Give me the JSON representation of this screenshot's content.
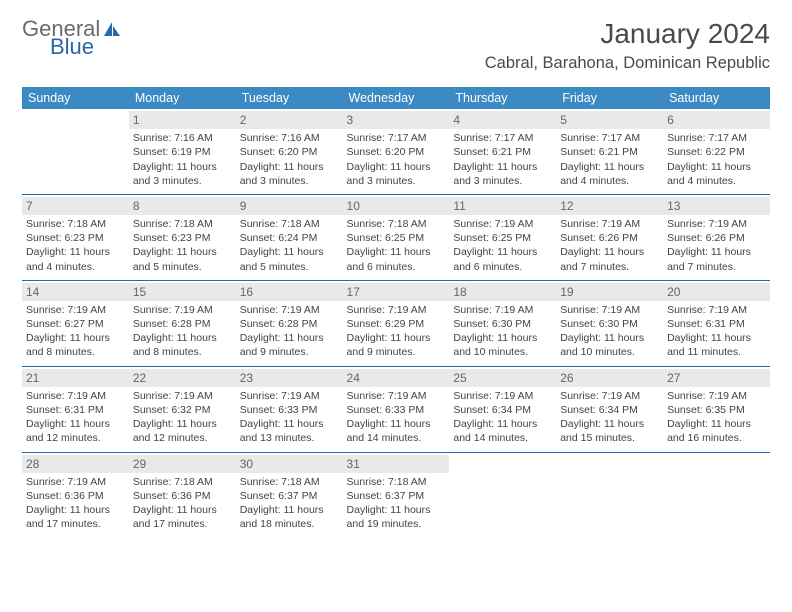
{
  "logo": {
    "text1": "General",
    "text2": "Blue",
    "accent": "#2868a8",
    "gray": "#6b6b6b"
  },
  "title": "January 2024",
  "location": "Cabral, Barahona, Dominican Republic",
  "colors": {
    "header_bg": "#3b8ac4",
    "header_fg": "#ffffff",
    "rule": "#2868a8",
    "daynum_bg": "#e9e9e9"
  },
  "day_headers": [
    "Sunday",
    "Monday",
    "Tuesday",
    "Wednesday",
    "Thursday",
    "Friday",
    "Saturday"
  ],
  "weeks": [
    [
      null,
      {
        "n": "1",
        "sr": "7:16 AM",
        "ss": "6:19 PM",
        "dl": "11 hours and 3 minutes."
      },
      {
        "n": "2",
        "sr": "7:16 AM",
        "ss": "6:20 PM",
        "dl": "11 hours and 3 minutes."
      },
      {
        "n": "3",
        "sr": "7:17 AM",
        "ss": "6:20 PM",
        "dl": "11 hours and 3 minutes."
      },
      {
        "n": "4",
        "sr": "7:17 AM",
        "ss": "6:21 PM",
        "dl": "11 hours and 3 minutes."
      },
      {
        "n": "5",
        "sr": "7:17 AM",
        "ss": "6:21 PM",
        "dl": "11 hours and 4 minutes."
      },
      {
        "n": "6",
        "sr": "7:17 AM",
        "ss": "6:22 PM",
        "dl": "11 hours and 4 minutes."
      }
    ],
    [
      {
        "n": "7",
        "sr": "7:18 AM",
        "ss": "6:23 PM",
        "dl": "11 hours and 4 minutes."
      },
      {
        "n": "8",
        "sr": "7:18 AM",
        "ss": "6:23 PM",
        "dl": "11 hours and 5 minutes."
      },
      {
        "n": "9",
        "sr": "7:18 AM",
        "ss": "6:24 PM",
        "dl": "11 hours and 5 minutes."
      },
      {
        "n": "10",
        "sr": "7:18 AM",
        "ss": "6:25 PM",
        "dl": "11 hours and 6 minutes."
      },
      {
        "n": "11",
        "sr": "7:19 AM",
        "ss": "6:25 PM",
        "dl": "11 hours and 6 minutes."
      },
      {
        "n": "12",
        "sr": "7:19 AM",
        "ss": "6:26 PM",
        "dl": "11 hours and 7 minutes."
      },
      {
        "n": "13",
        "sr": "7:19 AM",
        "ss": "6:26 PM",
        "dl": "11 hours and 7 minutes."
      }
    ],
    [
      {
        "n": "14",
        "sr": "7:19 AM",
        "ss": "6:27 PM",
        "dl": "11 hours and 8 minutes."
      },
      {
        "n": "15",
        "sr": "7:19 AM",
        "ss": "6:28 PM",
        "dl": "11 hours and 8 minutes."
      },
      {
        "n": "16",
        "sr": "7:19 AM",
        "ss": "6:28 PM",
        "dl": "11 hours and 9 minutes."
      },
      {
        "n": "17",
        "sr": "7:19 AM",
        "ss": "6:29 PM",
        "dl": "11 hours and 9 minutes."
      },
      {
        "n": "18",
        "sr": "7:19 AM",
        "ss": "6:30 PM",
        "dl": "11 hours and 10 minutes."
      },
      {
        "n": "19",
        "sr": "7:19 AM",
        "ss": "6:30 PM",
        "dl": "11 hours and 10 minutes."
      },
      {
        "n": "20",
        "sr": "7:19 AM",
        "ss": "6:31 PM",
        "dl": "11 hours and 11 minutes."
      }
    ],
    [
      {
        "n": "21",
        "sr": "7:19 AM",
        "ss": "6:31 PM",
        "dl": "11 hours and 12 minutes."
      },
      {
        "n": "22",
        "sr": "7:19 AM",
        "ss": "6:32 PM",
        "dl": "11 hours and 12 minutes."
      },
      {
        "n": "23",
        "sr": "7:19 AM",
        "ss": "6:33 PM",
        "dl": "11 hours and 13 minutes."
      },
      {
        "n": "24",
        "sr": "7:19 AM",
        "ss": "6:33 PM",
        "dl": "11 hours and 14 minutes."
      },
      {
        "n": "25",
        "sr": "7:19 AM",
        "ss": "6:34 PM",
        "dl": "11 hours and 14 minutes."
      },
      {
        "n": "26",
        "sr": "7:19 AM",
        "ss": "6:34 PM",
        "dl": "11 hours and 15 minutes."
      },
      {
        "n": "27",
        "sr": "7:19 AM",
        "ss": "6:35 PM",
        "dl": "11 hours and 16 minutes."
      }
    ],
    [
      {
        "n": "28",
        "sr": "7:19 AM",
        "ss": "6:36 PM",
        "dl": "11 hours and 17 minutes."
      },
      {
        "n": "29",
        "sr": "7:18 AM",
        "ss": "6:36 PM",
        "dl": "11 hours and 17 minutes."
      },
      {
        "n": "30",
        "sr": "7:18 AM",
        "ss": "6:37 PM",
        "dl": "11 hours and 18 minutes."
      },
      {
        "n": "31",
        "sr": "7:18 AM",
        "ss": "6:37 PM",
        "dl": "11 hours and 19 minutes."
      },
      null,
      null,
      null
    ]
  ],
  "labels": {
    "sunrise": "Sunrise:",
    "sunset": "Sunset:",
    "daylight": "Daylight:"
  }
}
